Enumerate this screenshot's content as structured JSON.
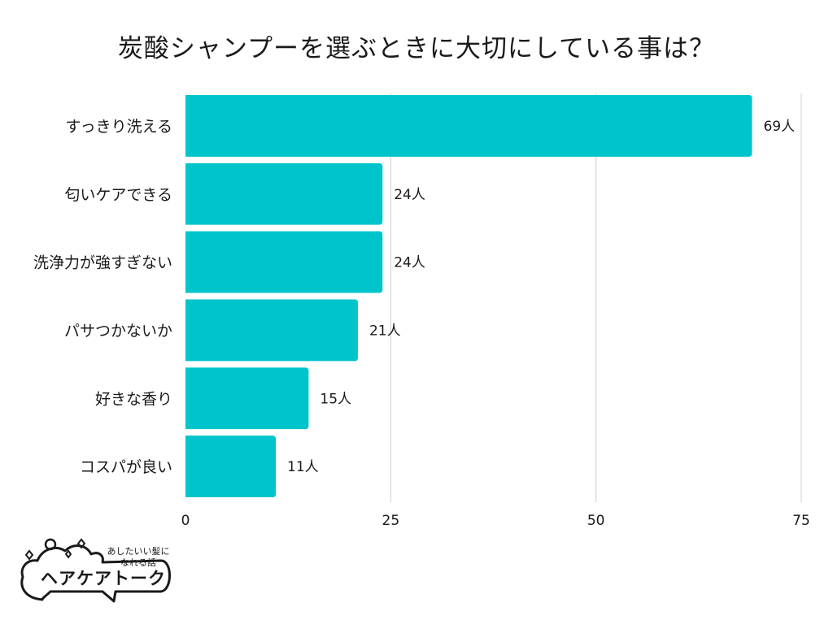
{
  "title": "炭酸シャンプーを選ぶときに大切にしている事は？",
  "colors": {
    "bar": "#00c4cc",
    "grid": "#cccccc",
    "text": "#1a1a1a"
  },
  "logo": {
    "tagline_line1": "あしたいい髪に",
    "tagline_line2": "なれる話",
    "name": "ヘアケアトーク"
  },
  "chart_data": {
    "type": "bar",
    "orientation": "horizontal",
    "title": "炭酸シャンプーを選ぶときに大切にしている事は？",
    "categories": [
      "すっきり洗える",
      "匂いケアできる",
      "洗浄力が強すぎない",
      "パサつかないか",
      "好きな香り",
      "コスパが良い"
    ],
    "values": [
      69,
      24,
      24,
      21,
      15,
      11
    ],
    "value_labels": [
      "69人",
      "24人",
      "24人",
      "21人",
      "15人",
      "11人"
    ],
    "unit": "人",
    "xlim": [
      0,
      75
    ],
    "xticks": [
      "0",
      "25",
      "50",
      "75"
    ],
    "grid": true,
    "legend": "none"
  }
}
